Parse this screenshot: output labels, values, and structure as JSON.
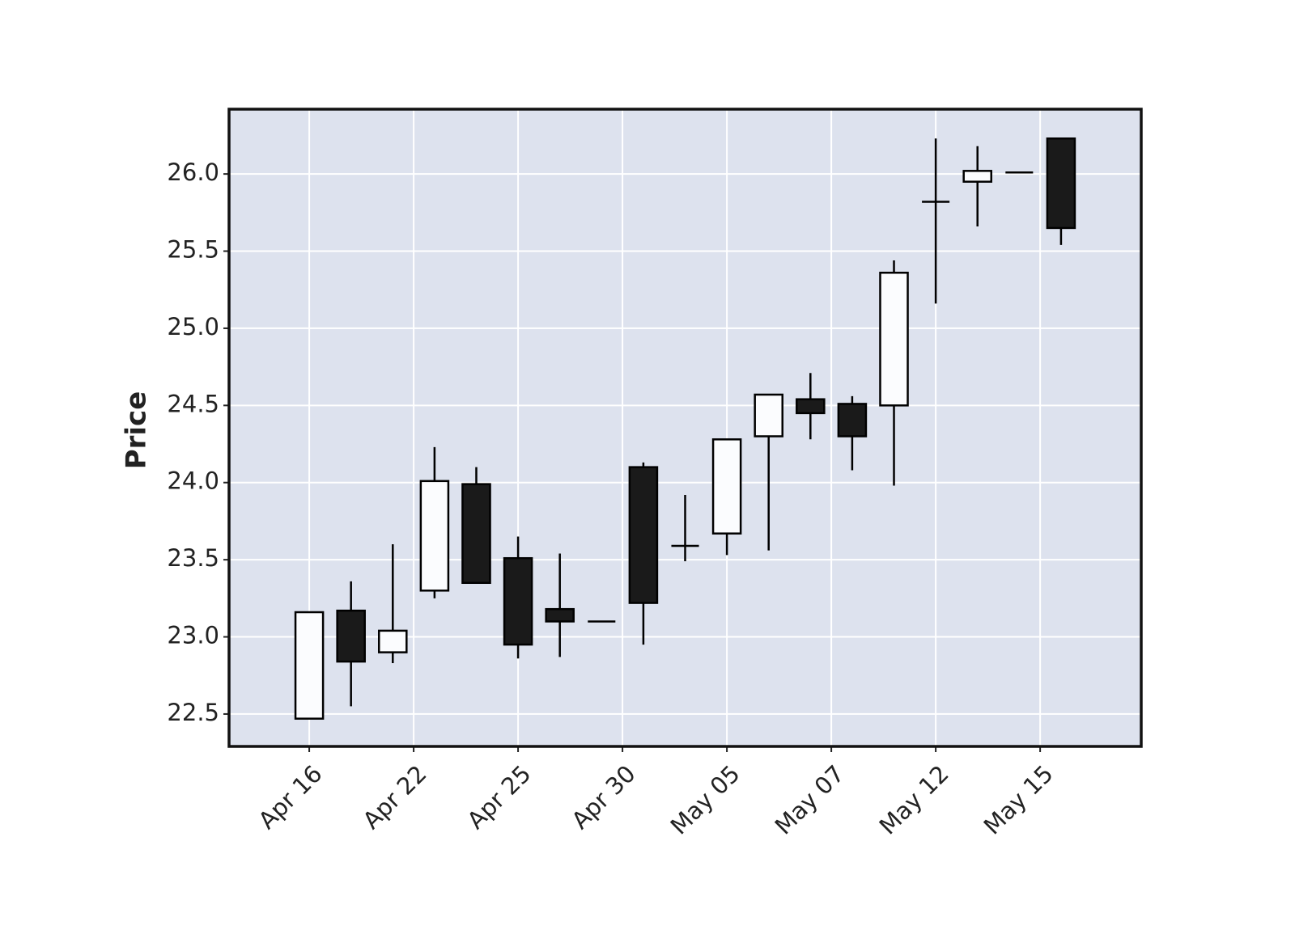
{
  "chart_data": {
    "type": "candlestick",
    "ylabel": "Price",
    "x": [
      0,
      1,
      2,
      3,
      4,
      5,
      6,
      7,
      8,
      9,
      10,
      11,
      12,
      13,
      14,
      15,
      16,
      17,
      18
    ],
    "open": [
      22.47,
      23.17,
      22.9,
      23.3,
      23.99,
      23.51,
      23.18,
      23.1,
      24.1,
      23.59,
      23.67,
      24.3,
      24.54,
      24.51,
      24.5,
      25.82,
      25.95,
      26.01,
      26.23
    ],
    "high": [
      23.16,
      23.36,
      23.6,
      24.23,
      24.1,
      23.65,
      23.54,
      23.1,
      24.13,
      23.92,
      24.28,
      24.57,
      24.71,
      24.56,
      25.44,
      26.23,
      26.18,
      26.01,
      26.23
    ],
    "low": [
      22.47,
      22.55,
      22.83,
      23.25,
      23.35,
      22.86,
      22.87,
      23.1,
      22.95,
      23.49,
      23.53,
      23.56,
      24.28,
      24.08,
      23.98,
      25.16,
      25.66,
      26.01,
      25.54
    ],
    "close": [
      23.16,
      22.84,
      23.04,
      24.01,
      23.35,
      22.95,
      23.1,
      23.1,
      23.22,
      23.59,
      24.28,
      24.57,
      24.45,
      24.3,
      25.36,
      25.82,
      26.02,
      26.01,
      25.65
    ],
    "up_color": "#fbfcfe",
    "down_color": "#1a1a1a",
    "background": "#dde2ee",
    "xlim": [
      -1.92,
      19.92
    ],
    "xticks": [
      {
        "value": 0,
        "label": "Apr 16"
      },
      {
        "value": 2.5,
        "label": "Apr 22"
      },
      {
        "value": 5,
        "label": "Apr 25"
      },
      {
        "value": 7.5,
        "label": "Apr 30"
      },
      {
        "value": 10,
        "label": "May 05"
      },
      {
        "value": 12.5,
        "label": "May 07"
      },
      {
        "value": 15,
        "label": "May 12"
      },
      {
        "value": 17.5,
        "label": "May 15"
      }
    ],
    "ylim": [
      22.29,
      26.42
    ],
    "yticks": [
      {
        "value": 22.5,
        "label": "22.5"
      },
      {
        "value": 23.0,
        "label": "23.0"
      },
      {
        "value": 23.5,
        "label": "23.5"
      },
      {
        "value": 24.0,
        "label": "24.0"
      },
      {
        "value": 24.5,
        "label": "24.5"
      },
      {
        "value": 25.0,
        "label": "25.0"
      },
      {
        "value": 25.5,
        "label": "25.5"
      },
      {
        "value": 26.0,
        "label": "26.0"
      }
    ],
    "grid": true
  }
}
